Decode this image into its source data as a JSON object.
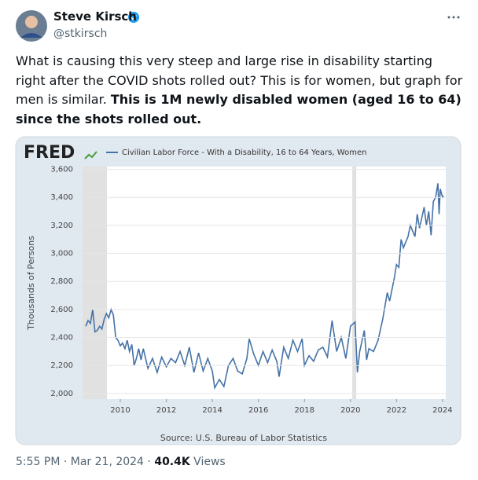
{
  "tweet": {
    "author": {
      "name": "Steve Kirsch",
      "handle": "@stkirsch"
    },
    "text": "What is causing this very steep and large rise in disability starting right after the COVID shots rolled out? This is for women, but graph for men is similar. ",
    "text_bold": "This is 1M newly disabled women (aged 16 to 64) since the shots rolled out.",
    "timestamp": "5:55 PM · Mar 21, 2024 ·",
    "views": "40.4K",
    "views_label": "Views"
  },
  "chart_data": {
    "type": "line",
    "logo": "FRED",
    "ylabel": "Thousands of Persons",
    "source": "Source: U.S. Bureau of Labor Statistics",
    "xlim": [
      2008.36,
      2024.14
    ],
    "xticks": [
      2010,
      2012,
      2014,
      2016,
      2018,
      2020,
      2022,
      2024
    ],
    "ylim": [
      1960,
      3620
    ],
    "yticks": [
      {
        "value": 2000,
        "label": "2,000"
      },
      {
        "value": 2200,
        "label": "2,200"
      },
      {
        "value": 2400,
        "label": "2,400"
      },
      {
        "value": 2600,
        "label": "2,600"
      },
      {
        "value": 2800,
        "label": "2,800"
      },
      {
        "value": 3000,
        "label": "3,000"
      },
      {
        "value": 3200,
        "label": "3,200"
      },
      {
        "value": 3400,
        "label": "3,400"
      },
      {
        "value": 3600,
        "label": "3,600"
      }
    ],
    "grid": true,
    "recessions": [
      [
        2007.92,
        2009.42
      ],
      [
        2020.08,
        2020.25
      ]
    ],
    "x": [
      2008.5,
      2008.6,
      2008.7,
      2008.8,
      2008.9,
      2009.0,
      2009.1,
      2009.2,
      2009.3,
      2009.4,
      2009.5,
      2009.6,
      2009.7,
      2009.8,
      2009.9,
      2010.0,
      2010.1,
      2010.2,
      2010.3,
      2010.4,
      2010.5,
      2010.6,
      2010.7,
      2010.8,
      2010.9,
      2011.0,
      2011.2,
      2011.4,
      2011.6,
      2011.8,
      2012.0,
      2012.2,
      2012.4,
      2012.6,
      2012.8,
      2013.0,
      2013.2,
      2013.4,
      2013.6,
      2013.8,
      2014.0,
      2014.1,
      2014.3,
      2014.5,
      2014.7,
      2014.9,
      2015.1,
      2015.3,
      2015.5,
      2015.6,
      2015.8,
      2016.0,
      2016.2,
      2016.4,
      2016.6,
      2016.8,
      2016.9,
      2017.1,
      2017.3,
      2017.5,
      2017.7,
      2017.9,
      2018.0,
      2018.2,
      2018.4,
      2018.6,
      2018.8,
      2019.0,
      2019.2,
      2019.4,
      2019.6,
      2019.8,
      2020.0,
      2020.2,
      2020.3,
      2020.4,
      2020.6,
      2020.7,
      2020.8,
      2021.0,
      2021.2,
      2021.4,
      2021.6,
      2021.7,
      2021.9,
      2022.0,
      2022.1,
      2022.2,
      2022.3,
      2022.5,
      2022.6,
      2022.8,
      2022.9,
      2023.0,
      2023.2,
      2023.3,
      2023.4,
      2023.5,
      2023.6,
      2023.7,
      2023.8,
      2023.85,
      2023.9,
      2024.0,
      2024.05
    ],
    "series": [
      {
        "name": "Civilian Labor Force - With a Disability, 16 to 64 Years, Women",
        "color": "#4572a7",
        "values": [
          2480,
          2520,
          2500,
          2600,
          2440,
          2450,
          2480,
          2460,
          2530,
          2570,
          2540,
          2600,
          2560,
          2400,
          2380,
          2340,
          2360,
          2320,
          2380,
          2300,
          2350,
          2200,
          2250,
          2320,
          2240,
          2320,
          2180,
          2250,
          2150,
          2260,
          2190,
          2250,
          2220,
          2300,
          2200,
          2330,
          2150,
          2290,
          2160,
          2250,
          2160,
          2040,
          2100,
          2050,
          2200,
          2250,
          2160,
          2140,
          2250,
          2390,
          2280,
          2200,
          2300,
          2220,
          2310,
          2230,
          2120,
          2330,
          2250,
          2380,
          2300,
          2390,
          2200,
          2270,
          2230,
          2310,
          2330,
          2260,
          2520,
          2300,
          2400,
          2250,
          2480,
          2510,
          2150,
          2300,
          2450,
          2240,
          2320,
          2300,
          2380,
          2530,
          2720,
          2660,
          2820,
          2920,
          2900,
          3100,
          3040,
          3120,
          3200,
          3120,
          3280,
          3180,
          3330,
          3200,
          3300,
          3130,
          3370,
          3400,
          3500,
          3280,
          3460,
          3400,
          3410
        ]
      }
    ]
  }
}
